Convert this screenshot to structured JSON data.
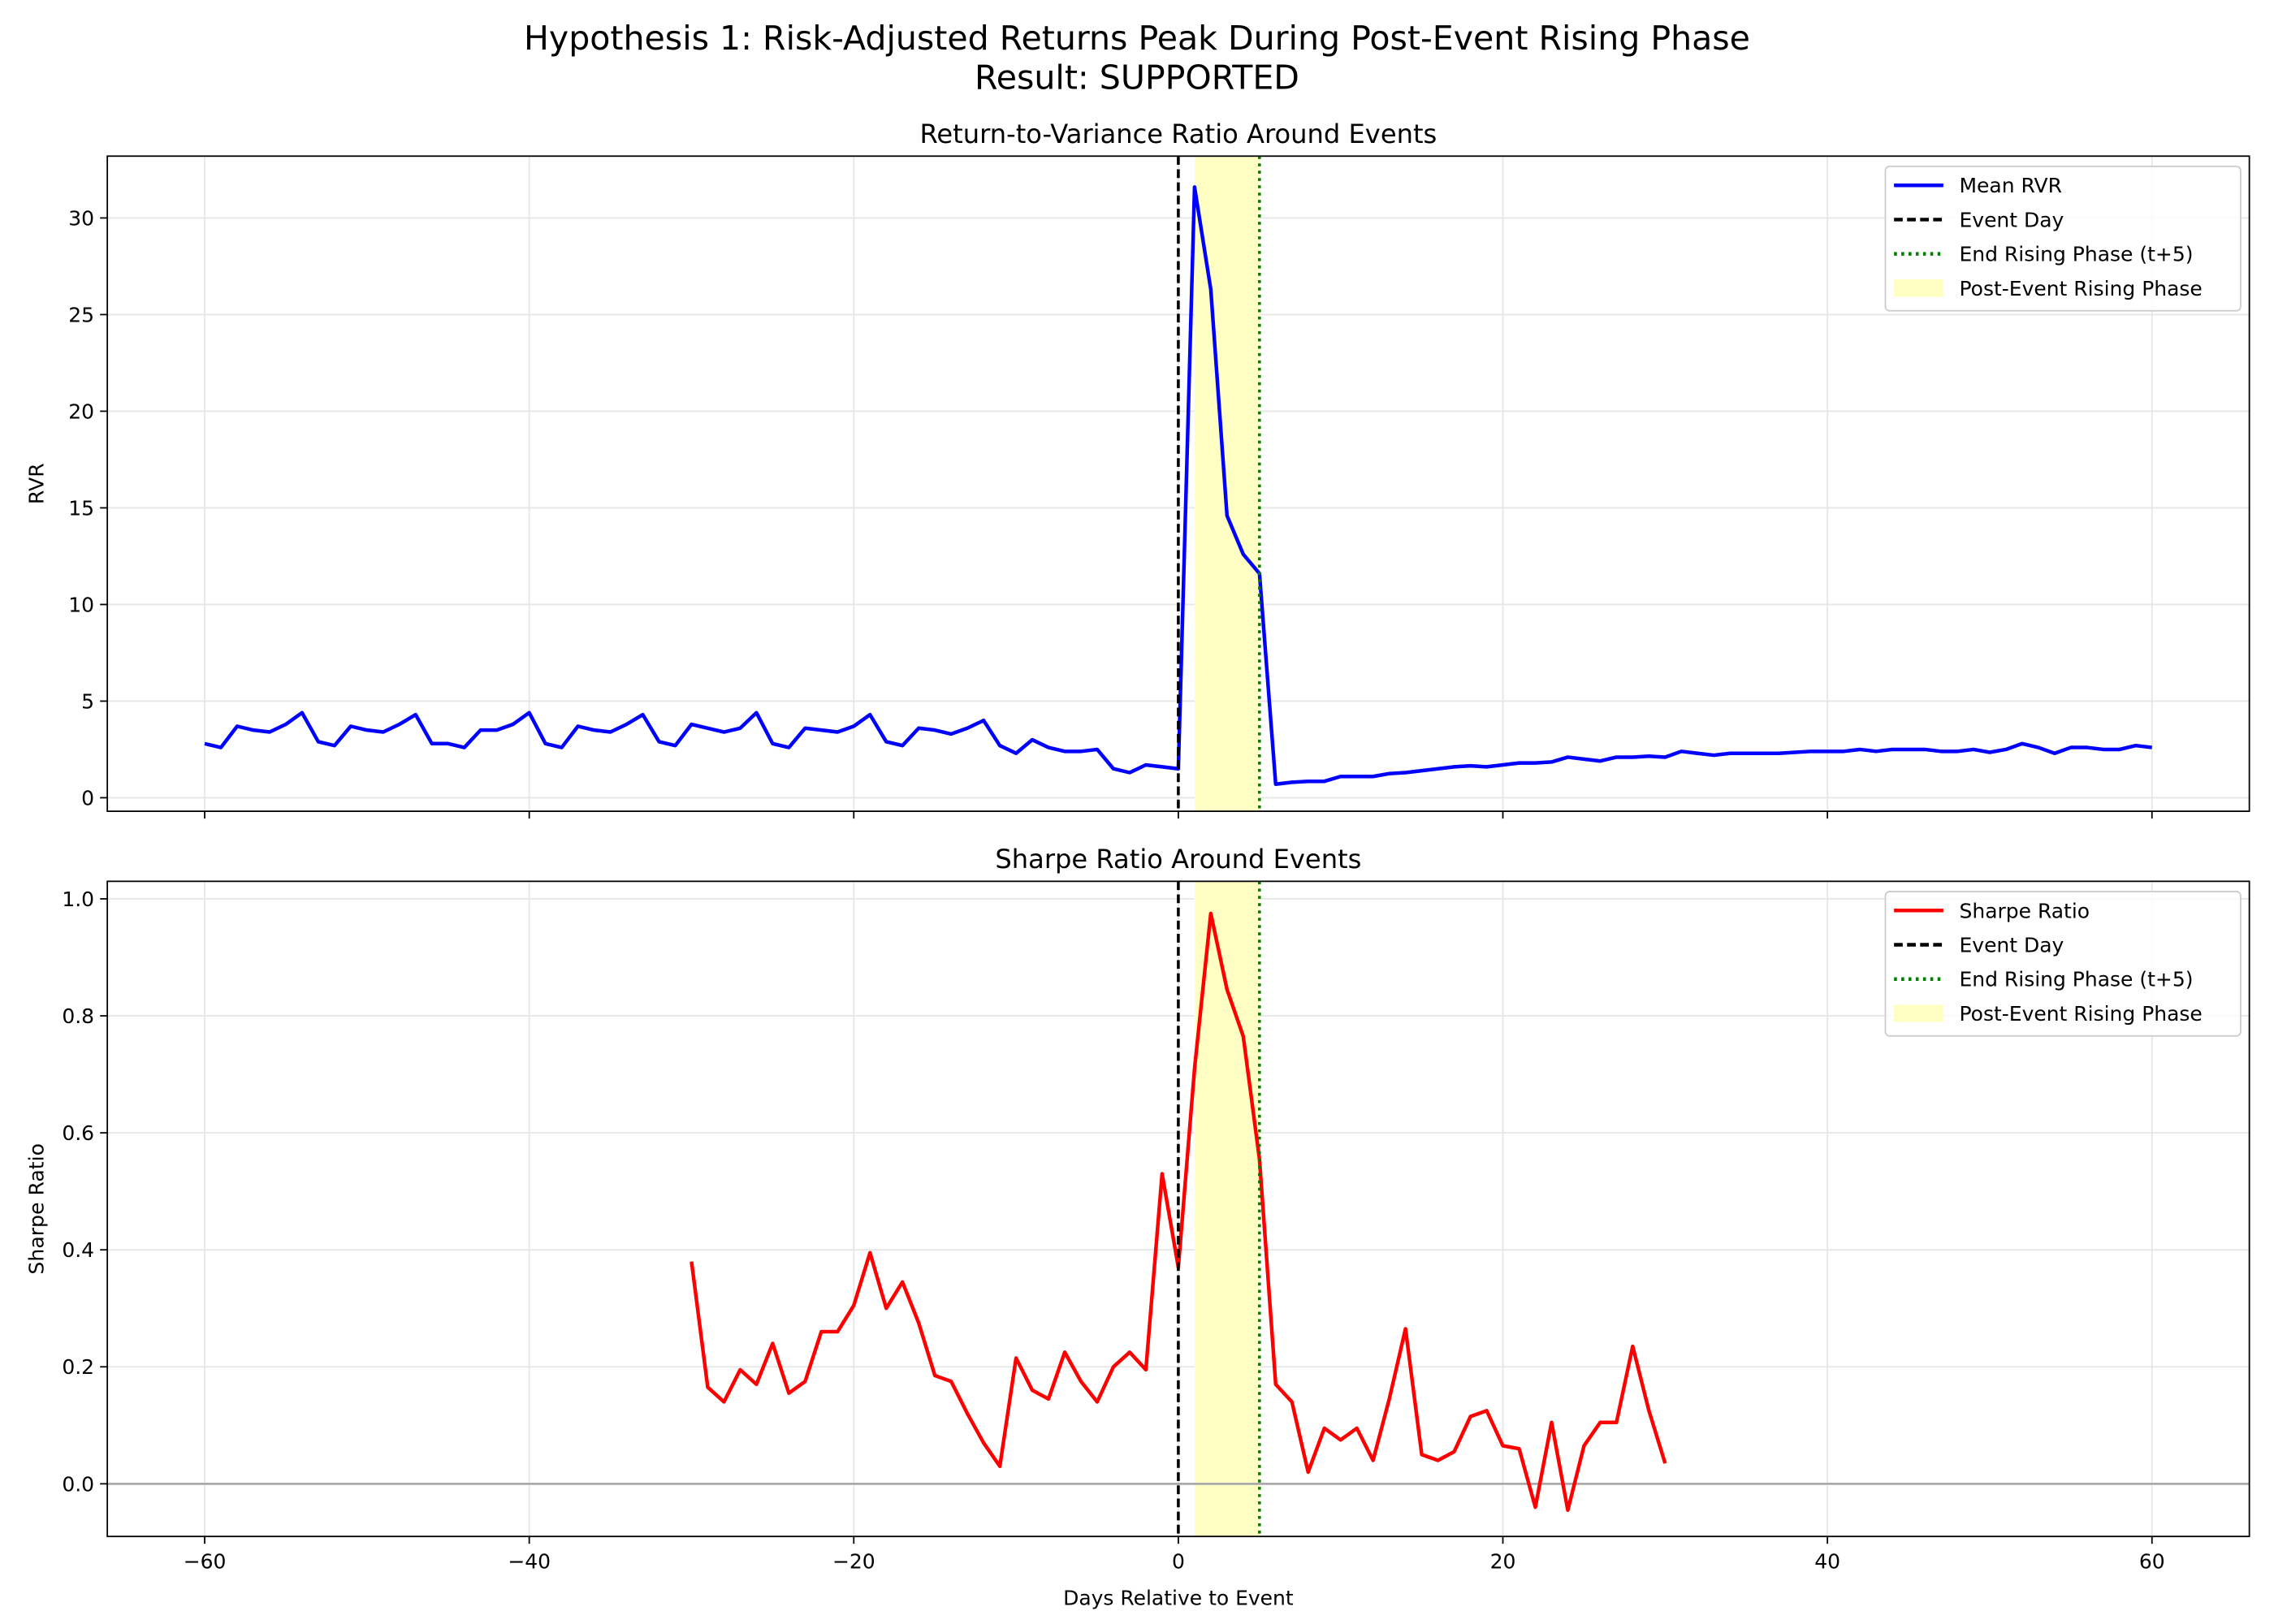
{
  "title": "Hypothesis 1: Risk-Adjusted Returns Peak During Post-Event Rising Phase",
  "subtitle": "Result: SUPPORTED",
  "chart_data": [
    {
      "type": "line",
      "title": "Return-to-Variance Ratio Around Events",
      "ylabel": "RVR",
      "xlim": [
        -66,
        66
      ],
      "ylim": [
        -0.7,
        33.2
      ],
      "xticks": [
        -60,
        -40,
        -20,
        0,
        20,
        40,
        60
      ],
      "xtick_labels": false,
      "yticks": [
        0,
        5,
        10,
        15,
        20,
        25,
        30
      ],
      "grid": true,
      "legend": "upper right",
      "series": [
        {
          "name": "Mean RVR",
          "color": "#0000ff",
          "x": [
            -60,
            -59,
            -58,
            -57,
            -56,
            -55,
            -54,
            -53,
            -52,
            -51,
            -50,
            -49,
            -48,
            -47,
            -46,
            -45,
            -44,
            -43,
            -42,
            -41,
            -40,
            -39,
            -38,
            -37,
            -36,
            -35,
            -34,
            -33,
            -32,
            -31,
            -30,
            -29,
            -28,
            -27,
            -26,
            -25,
            -24,
            -23,
            -22,
            -21,
            -20,
            -19,
            -18,
            -17,
            -16,
            -15,
            -14,
            -13,
            -12,
            -11,
            -10,
            -9,
            -8,
            -7,
            -6,
            -5,
            -4,
            -3,
            -2,
            -1,
            0,
            1,
            2,
            3,
            4,
            5,
            6,
            7,
            8,
            9,
            10,
            11,
            12,
            13,
            14,
            15,
            16,
            17,
            18,
            19,
            20,
            21,
            22,
            23,
            24,
            25,
            26,
            27,
            28,
            29,
            30,
            31,
            32,
            33,
            34,
            35,
            36,
            37,
            38,
            39,
            40,
            41,
            42,
            43,
            44,
            45,
            46,
            47,
            48,
            49,
            50,
            51,
            52,
            53,
            54,
            55,
            56,
            57,
            58,
            59,
            60
          ],
          "values": [
            2.8,
            2.6,
            3.7,
            3.5,
            3.4,
            3.8,
            4.4,
            2.9,
            2.7,
            3.7,
            3.5,
            3.4,
            3.8,
            4.3,
            2.8,
            2.8,
            2.6,
            3.5,
            3.5,
            3.8,
            4.4,
            2.8,
            2.6,
            3.7,
            3.5,
            3.4,
            3.8,
            4.3,
            2.9,
            2.7,
            3.8,
            3.6,
            3.4,
            3.6,
            4.4,
            2.8,
            2.6,
            3.6,
            3.5,
            3.4,
            3.7,
            4.3,
            2.9,
            2.7,
            3.6,
            3.5,
            3.3,
            3.6,
            4.0,
            2.7,
            2.3,
            3.0,
            2.6,
            2.4,
            2.4,
            2.5,
            1.5,
            1.3,
            1.7,
            1.6,
            1.5,
            31.6,
            26.3,
            14.6,
            12.6,
            11.6,
            0.7,
            0.8,
            0.85,
            0.85,
            1.1,
            1.1,
            1.1,
            1.25,
            1.3,
            1.4,
            1.5,
            1.6,
            1.65,
            1.6,
            1.7,
            1.8,
            1.8,
            1.85,
            2.1,
            2.0,
            1.9,
            2.1,
            2.1,
            2.15,
            2.1,
            2.4,
            2.3,
            2.2,
            2.3,
            2.3,
            2.3,
            2.3,
            2.35,
            2.4,
            2.4,
            2.4,
            2.5,
            2.4,
            2.5,
            2.5,
            2.5,
            2.4,
            2.4,
            2.5,
            2.35,
            2.5,
            2.8,
            2.6,
            2.3,
            2.6,
            2.6,
            2.5,
            2.5,
            2.7,
            2.6
          ]
        }
      ],
      "vlines": [
        {
          "x": 0,
          "name": "Event Day",
          "color": "#000000",
          "style": "dashed"
        },
        {
          "x": 5,
          "name": "End Rising Phase (t+5)",
          "color": "#008000",
          "style": "dotted"
        }
      ],
      "span": {
        "x": [
          1,
          5
        ],
        "name": "Post-Event Rising Phase",
        "color": "#ffffc4"
      }
    },
    {
      "type": "line",
      "title": "Sharpe Ratio Around Events",
      "ylabel": "Sharpe Ratio",
      "xlabel": "Days Relative to Event",
      "xlim": [
        -66,
        66
      ],
      "ylim": [
        -0.09,
        1.03
      ],
      "xticks": [
        {
          "value": -60,
          "label": "−60"
        },
        {
          "value": -40,
          "label": "−40"
        },
        {
          "value": -20,
          "label": "−20"
        },
        0,
        20,
        40,
        60
      ],
      "xtick_labels": true,
      "yticks": [
        {
          "value": 0,
          "label": "0.0"
        },
        0.2,
        0.4,
        0.6,
        0.8,
        {
          "value": 1,
          "label": "1.0"
        }
      ],
      "grid": true,
      "legend": "upper right",
      "series": [
        {
          "name": "Sharpe Ratio",
          "color": "#ff0000",
          "x": [
            -30,
            -29,
            -28,
            -27,
            -26,
            -25,
            -24,
            -23,
            -22,
            -21,
            -20,
            -19,
            -18,
            -17,
            -16,
            -15,
            -14,
            -13,
            -12,
            -11,
            -10,
            -9,
            -8,
            -7,
            -6,
            -5,
            -4,
            -3,
            -2,
            -1,
            0,
            1,
            2,
            3,
            4,
            5,
            6,
            7,
            8,
            9,
            10,
            11,
            12,
            13,
            14,
            15,
            16,
            17,
            18,
            19,
            20,
            21,
            22,
            23,
            24,
            25,
            26,
            27,
            28,
            29,
            30
          ],
          "values": [
            0.38,
            0.165,
            0.14,
            0.195,
            0.17,
            0.24,
            0.155,
            0.175,
            0.26,
            0.26,
            0.305,
            0.395,
            0.3,
            0.345,
            0.275,
            0.185,
            0.175,
            0.12,
            0.07,
            0.03,
            0.215,
            0.16,
            0.145,
            0.225,
            0.175,
            0.14,
            0.2,
            0.225,
            0.195,
            0.53,
            0.37,
            0.71,
            0.975,
            0.845,
            0.765,
            0.555,
            0.17,
            0.14,
            0.02,
            0.095,
            0.075,
            0.095,
            0.04,
            0.145,
            0.265,
            0.05,
            0.04,
            0.055,
            0.115,
            0.125,
            0.065,
            0.06,
            -0.04,
            0.105,
            -0.045,
            0.065,
            0.105,
            0.105,
            0.235,
            0.125,
            0.035
          ]
        }
      ],
      "vlines": [
        {
          "x": 0,
          "name": "Event Day",
          "color": "#000000",
          "style": "dashed"
        },
        {
          "x": 5,
          "name": "End Rising Phase (t+5)",
          "color": "#008000",
          "style": "dotted"
        }
      ],
      "span": {
        "x": [
          1,
          5
        ],
        "name": "Post-Event Rising Phase",
        "color": "#ffffc4"
      },
      "hline": {
        "y": 0,
        "color": "#aaaaaa"
      }
    }
  ]
}
